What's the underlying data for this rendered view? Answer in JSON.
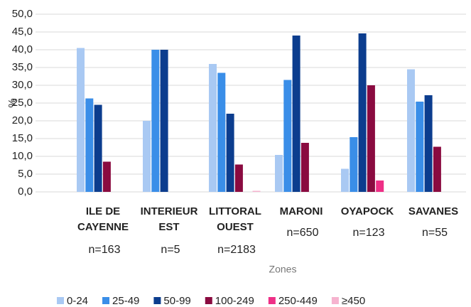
{
  "chart_data": {
    "type": "bar",
    "y_label": "%",
    "x_label": "Zones",
    "categories": [
      [
        "ILE DE",
        "CAYENNE"
      ],
      [
        "INTERIEUR",
        "EST"
      ],
      [
        "LITTORAL",
        "OUEST"
      ],
      [
        "MARONI"
      ],
      [
        "OYAPOCK"
      ],
      [
        "SAVANES"
      ]
    ],
    "sample_sizes": [
      "n=163",
      "n=5",
      "n=2183",
      "n=650",
      "n=123",
      "n=55"
    ],
    "series": [
      {
        "name": "0-24",
        "color": "#a9c9f3",
        "values": [
          40.5,
          20,
          36,
          10.4,
          6.5,
          34.5
        ]
      },
      {
        "name": "25-49",
        "color": "#3a8ee8",
        "values": [
          26.3,
          40,
          33.5,
          31.5,
          15.4,
          25.4
        ]
      },
      {
        "name": "50-99",
        "color": "#0c3d8e",
        "values": [
          24.5,
          40,
          22,
          44,
          44.6,
          27.2
        ]
      },
      {
        "name": "100-249",
        "color": "#8a0b40",
        "values": [
          8.5,
          0,
          7.7,
          13.8,
          30,
          12.7
        ]
      },
      {
        "name": "250-449",
        "color": "#ee2f86",
        "values": [
          0,
          0,
          0,
          0,
          3.2,
          0
        ]
      },
      {
        "name": "≥450",
        "color": "#f6b3cf",
        "values": [
          0,
          0,
          0.3,
          0,
          0,
          0
        ]
      }
    ],
    "ylim": [
      0,
      50
    ],
    "yticks": [
      {
        "value": 0,
        "label": "0,0"
      },
      {
        "value": 5,
        "label": "5,0"
      },
      {
        "value": 10,
        "label": "10,0"
      },
      {
        "value": 15,
        "label": "15,0"
      },
      {
        "value": 20,
        "label": "20,0"
      },
      {
        "value": 25,
        "label": "25,0"
      },
      {
        "value": 30,
        "label": "30,0"
      },
      {
        "value": 35,
        "label": "35,0"
      },
      {
        "value": 40,
        "label": "40,0"
      },
      {
        "value": 45,
        "label": "45,0"
      },
      {
        "value": 50,
        "label": "50,0"
      }
    ],
    "grid": true,
    "legend": "bottom"
  }
}
